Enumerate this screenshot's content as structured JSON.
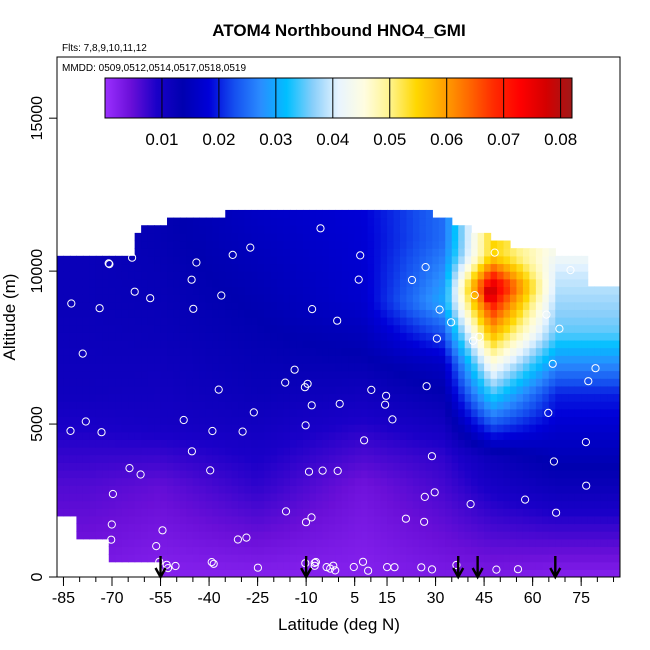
{
  "chart_data": {
    "type": "heatmap",
    "title": "ATOM4 Northbound HNO4_GMI",
    "subtitle_flights": "Flts: 7,8,9,10,11,12",
    "subtitle_dates": "MMDD: 0509,0512,0514,0517,0518,0519",
    "xlabel": "Latitude (deg N)",
    "ylabel": "Altitude (m)",
    "xlim": [
      -87,
      87
    ],
    "ylim": [
      0,
      17000
    ],
    "x_ticks": [
      -85,
      -70,
      -55,
      -40,
      -25,
      -10,
      5,
      15,
      30,
      45,
      60,
      75
    ],
    "x_tick_labels": [
      "-85",
      "-70",
      "-55",
      "-40",
      "-25",
      "-10",
      "5",
      "15",
      "30",
      "45",
      "60",
      "75"
    ],
    "y_ticks": [
      0,
      5000,
      10000,
      15000
    ],
    "y_tick_labels": [
      "0",
      "5000",
      "10000",
      "15000"
    ],
    "colorbar": {
      "min": 0.0,
      "max": 0.082,
      "ticks": [
        0.01,
        0.02,
        0.03,
        0.04,
        0.05,
        0.06,
        0.07,
        0.08
      ],
      "tick_labels": [
        "0.01",
        "0.02",
        "0.03",
        "0.04",
        "0.05",
        "0.06",
        "0.07",
        "0.08"
      ],
      "colors": [
        "#9b30ff",
        "#6a0fd8",
        "#1a00c8",
        "#0000b0",
        "#0000d8",
        "#1550f0",
        "#2a8cff",
        "#00bfff",
        "#87cefa",
        "#e8f4ff",
        "#fffde0",
        "#fff38a",
        "#ffd700",
        "#ffa500",
        "#ff6a00",
        "#ff2a00",
        "#ff0000",
        "#d40000",
        "#a01818"
      ]
    },
    "downward_arrows_lat": [
      -55,
      -10,
      37,
      43,
      67
    ],
    "cross_sections": [
      {
        "lat_range": [
          -85,
          -70
        ],
        "value_by_altitude_km": [
          [
            0,
            0.003
          ],
          [
            3,
            0.006
          ],
          [
            6,
            0.011
          ],
          [
            9,
            0.012
          ],
          [
            10.5,
            0.012
          ]
        ]
      },
      {
        "lat_range": [
          -70,
          -40
        ],
        "value_by_altitude_km": [
          [
            0,
            0.002
          ],
          [
            3,
            0.005
          ],
          [
            5,
            0.01
          ],
          [
            8,
            0.012
          ],
          [
            11,
            0.013
          ]
        ]
      },
      {
        "lat_range": [
          -40,
          -10
        ],
        "value_by_altitude_km": [
          [
            0,
            0.002
          ],
          [
            3,
            0.008
          ],
          [
            6,
            0.012
          ],
          [
            9,
            0.014
          ],
          [
            12,
            0.016
          ]
        ]
      },
      {
        "lat_range": [
          -10,
          25
        ],
        "value_by_altitude_km": [
          [
            0,
            0.002
          ],
          [
            3,
            0.004
          ],
          [
            6,
            0.011
          ],
          [
            9,
            0.017
          ],
          [
            12,
            0.018
          ]
        ]
      },
      {
        "lat_range": [
          25,
          40
        ],
        "value_by_altitude_km": [
          [
            0,
            0.003
          ],
          [
            4,
            0.008
          ],
          [
            7,
            0.016
          ],
          [
            9,
            0.03
          ],
          [
            11,
            0.025
          ]
        ]
      },
      {
        "lat_range": [
          40,
          55
        ],
        "value_by_altitude_km": [
          [
            0,
            0.003
          ],
          [
            4,
            0.012
          ],
          [
            7,
            0.045
          ],
          [
            8.5,
            0.065
          ],
          [
            9.5,
            0.078
          ],
          [
            10.5,
            0.055
          ]
        ]
      },
      {
        "lat_range": [
          55,
          80
        ],
        "value_by_altitude_km": [
          [
            0,
            0.002
          ],
          [
            3,
            0.012
          ],
          [
            6,
            0.02
          ],
          [
            8,
            0.035
          ],
          [
            10,
            0.04
          ],
          [
            11,
            0.045
          ]
        ]
      }
    ],
    "hotspot_peak": {
      "lat": 47,
      "alt_m": 9300,
      "value": 0.08
    },
    "flight_points_count": 118
  }
}
